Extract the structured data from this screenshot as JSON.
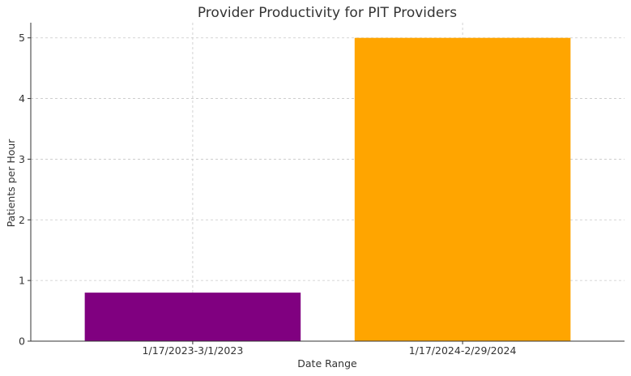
{
  "chart_data": {
    "type": "bar",
    "title": "Provider Productivity for PIT Providers",
    "xlabel": "Date Range",
    "ylabel": "Patients per Hour",
    "categories": [
      "1/17/2023-3/1/2023",
      "1/17/2024-2/29/2024"
    ],
    "values": [
      0.8,
      5
    ],
    "colors": [
      "#800080",
      "#FFA500"
    ],
    "ylim": [
      0,
      5.25
    ],
    "yticks": [
      "0",
      "1",
      "2",
      "3",
      "4",
      "5"
    ],
    "grid": true
  }
}
